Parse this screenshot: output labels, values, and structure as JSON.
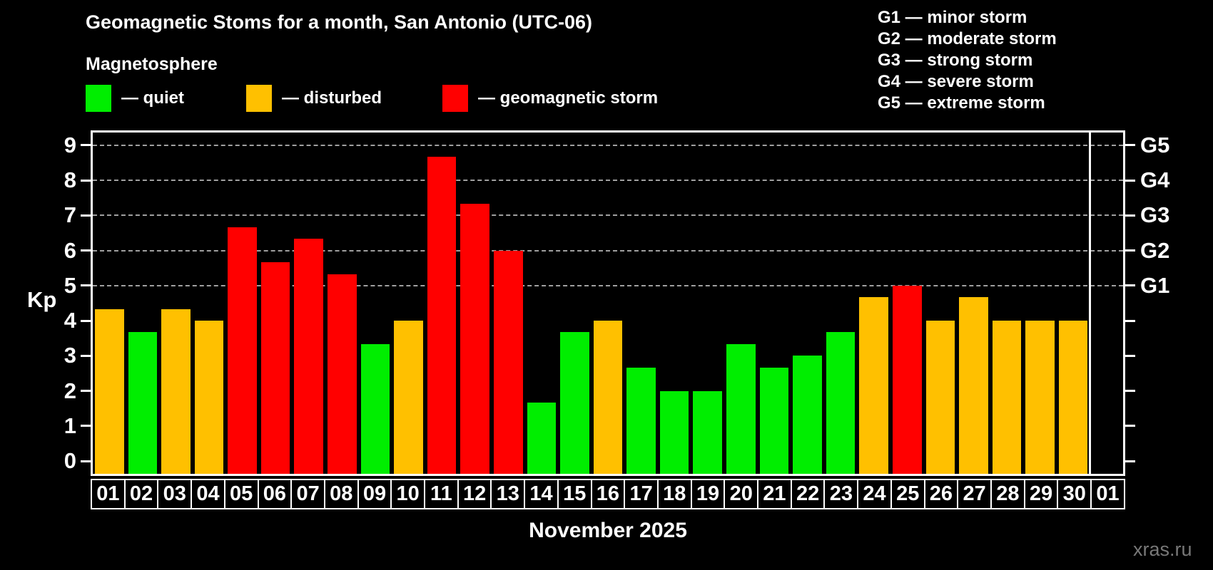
{
  "title": "Geomagnetic Stoms for a month, San Antonio (UTC-06)",
  "subtitle": "Magnetosphere",
  "legend": {
    "items": [
      {
        "key": "quiet",
        "label": "— quiet",
        "color": "#00ee00"
      },
      {
        "key": "disturbed",
        "label": "— disturbed",
        "color": "#ffc000"
      },
      {
        "key": "storm",
        "label": "— geomagnetic storm",
        "color": "#ff0000"
      }
    ]
  },
  "storm_scale_legend": {
    "items": [
      "G1 — minor storm",
      "G2 — moderate storm",
      "G3 — strong storm",
      "G4 — severe storm",
      "G5 — extreme storm"
    ]
  },
  "chart_data": {
    "type": "bar",
    "title": "Geomagnetic Stoms for a month, San Antonio (UTC-06)",
    "xlabel": "November 2025",
    "ylabel": "Kp",
    "ylim": [
      0,
      9
    ],
    "y_ticks": [
      0,
      1,
      2,
      3,
      4,
      5,
      6,
      7,
      8,
      9
    ],
    "gridlines_at": [
      5,
      6,
      7,
      8,
      9
    ],
    "grid": "dashed horizontal at storm levels only",
    "legend_position": "top",
    "right_axis_labels": [
      {
        "kp": 5,
        "label": "G1"
      },
      {
        "kp": 6,
        "label": "G2"
      },
      {
        "kp": 7,
        "label": "G3"
      },
      {
        "kp": 8,
        "label": "G4"
      },
      {
        "kp": 9,
        "label": "G5"
      }
    ],
    "categories": [
      "01",
      "02",
      "03",
      "04",
      "05",
      "06",
      "07",
      "08",
      "09",
      "10",
      "11",
      "12",
      "13",
      "14",
      "15",
      "16",
      "17",
      "18",
      "19",
      "20",
      "21",
      "22",
      "23",
      "24",
      "25",
      "26",
      "27",
      "28",
      "29",
      "30",
      "01"
    ],
    "values": [
      4.33,
      3.67,
      4.33,
      4.0,
      6.67,
      5.67,
      6.33,
      5.33,
      3.33,
      4.0,
      8.67,
      7.33,
      6.0,
      1.67,
      3.67,
      4.0,
      2.67,
      2.0,
      2.0,
      3.33,
      2.67,
      3.0,
      3.67,
      4.67,
      5.0,
      4.0,
      4.67,
      4.0,
      4.0,
      4.0,
      null
    ],
    "statuses": [
      "disturbed",
      "quiet",
      "disturbed",
      "disturbed",
      "storm",
      "storm",
      "storm",
      "storm",
      "quiet",
      "disturbed",
      "storm",
      "storm",
      "storm",
      "quiet",
      "quiet",
      "disturbed",
      "quiet",
      "quiet",
      "quiet",
      "quiet",
      "quiet",
      "quiet",
      "quiet",
      "disturbed",
      "storm",
      "disturbed",
      "disturbed",
      "disturbed",
      "disturbed",
      "disturbed",
      null
    ],
    "colors": {
      "quiet": "#00ee00",
      "disturbed": "#ffc000",
      "storm": "#ff0000"
    },
    "month_boundary_index": 30
  },
  "watermark": "xras.ru"
}
